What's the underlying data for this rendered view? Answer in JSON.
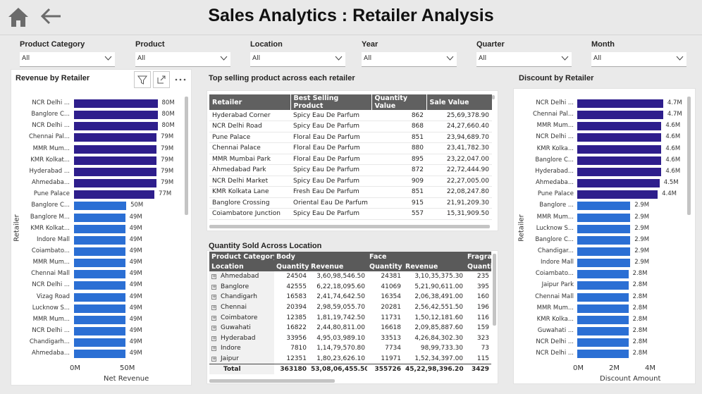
{
  "header": {
    "title": "Sales Analytics : Retailer Analysis"
  },
  "filters": [
    {
      "label": "Product Category",
      "value": "All"
    },
    {
      "label": "Product",
      "value": "All"
    },
    {
      "label": "Location",
      "value": "All"
    },
    {
      "label": "Year",
      "value": "All"
    },
    {
      "label": "Quarter",
      "value": "All"
    },
    {
      "label": "Month",
      "value": "All"
    }
  ],
  "revenue": {
    "title": "Revenue by Retailer",
    "xlabel": "Net Revenue",
    "ylabel": "Retailer",
    "ticks": [
      "0M",
      "50M"
    ]
  },
  "top": {
    "title": "Top selling product across each retailer",
    "headers": [
      "Retailer",
      "Best Selling Product",
      "Quantity Value",
      "Sale Value"
    ],
    "rows": [
      [
        "Hyderabad Corner",
        "Spicy Eau De Parfum",
        "862",
        "25,69,378.90"
      ],
      [
        "NCR Delhi Road",
        "Spicy Eau De Parfum",
        "868",
        "24,27,660.40"
      ],
      [
        "Pune Palace",
        "Floral Eau De Parfum",
        "851",
        "23,94,689.70"
      ],
      [
        "Chennai Palace",
        "Floral Eau De Parfum",
        "880",
        "23,41,782.30"
      ],
      [
        "MMR Mumbai Park",
        "Floral Eau De Parfum",
        "895",
        "23,22,047.00"
      ],
      [
        "Ahmedabad Park",
        "Spicy Eau De Parfum",
        "872",
        "22,72,444.90"
      ],
      [
        "NCR Delhi Market",
        "Spicy Eau De Parfum",
        "909",
        "22,27,005.00"
      ],
      [
        "KMR Kolkata Lane",
        "Fresh Eau De Parfum",
        "851",
        "22,08,247.80"
      ],
      [
        "Banglore Crossing",
        "Oriental Eau De Parfum",
        "915",
        "21,91,209.30"
      ],
      [
        "Coiambatore Junction",
        "Spicy Eau De Parfum",
        "557",
        "15,31,909.50"
      ]
    ]
  },
  "qty": {
    "title": "Quantity Sold Across Location",
    "cat_header": "Product Category",
    "loc_header": "Location",
    "groups": [
      "Body",
      "Face",
      "Fragra"
    ],
    "sub": [
      "Quantity",
      "Revenue",
      "Quantity",
      "Revenue",
      "Quanti"
    ],
    "rows": [
      [
        "Ahmedabad",
        "24504",
        "3,60,98,546.50",
        "24381",
        "3,10,35,375.30",
        "235"
      ],
      [
        "Banglore",
        "42555",
        "6,22,18,095.60",
        "41069",
        "5,21,90,611.00",
        "395"
      ],
      [
        "Chandigarh",
        "16583",
        "2,41,74,642.50",
        "16354",
        "2,06,38,491.00",
        "160"
      ],
      [
        "Chennai",
        "20394",
        "2,98,59,055.70",
        "20281",
        "2,56,42,551.50",
        "196"
      ],
      [
        "Coimbatore",
        "12385",
        "1,81,19,742.50",
        "11731",
        "1,50,12,181.60",
        "116"
      ],
      [
        "Guwahati",
        "16822",
        "2,44,80,811.00",
        "16618",
        "2,09,85,887.60",
        "159"
      ],
      [
        "Hyderabad",
        "33956",
        "4,95,03,989.10",
        "33513",
        "4,26,84,302.30",
        "323"
      ],
      [
        "Indore",
        "7810",
        "1,14,79,570.80",
        "7734",
        "98,99,733.30",
        "73"
      ],
      [
        "Jaipur",
        "12351",
        "1,80,23,626.10",
        "11971",
        "1,52,34,397.00",
        "115"
      ]
    ],
    "total": [
      "Total",
      "363180",
      "53,08,06,455.50",
      "355726",
      "45,22,98,396.20",
      "3429"
    ]
  },
  "discount": {
    "title": "Discount by Retailer",
    "xlabel": "Discount Amount",
    "ylabel": "Retailer",
    "ticks": [
      "0M",
      "2M",
      "4M"
    ]
  },
  "chart_data": [
    {
      "type": "bar",
      "title": "Revenue by Retailer",
      "xlabel": "Net Revenue",
      "ylabel": "Retailer",
      "xlim": [
        0,
        80
      ],
      "categories": [
        "NCR Delhi ...",
        "Banglore C...",
        "NCR Delhi ...",
        "Chennai Pal...",
        "MMR Mum...",
        "KMR Kolkat...",
        "Hyderabad ...",
        "Ahmedaba...",
        "Pune Palace",
        "Banglore C...",
        "Banglore M...",
        "KMR Kolkat...",
        "Indore Mall",
        "Coiambato...",
        "MMR Mum...",
        "Chennai Mall",
        "NCR Delhi ...",
        "Vizag Road",
        "Lucknow S...",
        "MMR Mum...",
        "NCR Delhi ...",
        "Chandigarh...",
        "Ahmedaba..."
      ],
      "values": [
        80,
        80,
        80,
        79,
        79,
        79,
        79,
        79,
        77,
        50,
        49,
        49,
        49,
        49,
        49,
        49,
        49,
        49,
        49,
        49,
        49,
        49,
        49
      ],
      "labels": [
        "80M",
        "80M",
        "80M",
        "79M",
        "79M",
        "79M",
        "79M",
        "79M",
        "77M",
        "50M",
        "49M",
        "49M",
        "49M",
        "49M",
        "49M",
        "49M",
        "49M",
        "49M",
        "49M",
        "49M",
        "49M",
        "49M",
        "49M"
      ],
      "colors": {
        "high": "#2e1e8c",
        "low": "#2b6fd4"
      }
    },
    {
      "type": "bar",
      "title": "Discount by Retailer",
      "xlabel": "Discount Amount",
      "ylabel": "Retailer",
      "xlim": [
        0,
        4.8
      ],
      "categories": [
        "NCR Delhi ...",
        "Chennai Pal...",
        "MMR Mum...",
        "NCR Delhi ...",
        "KMR Kolka...",
        "Banglore C...",
        "Hyderabad...",
        "Ahmedaba...",
        "Pune Palace",
        "Banglore ...",
        "MMR Mum...",
        "Lucknow S...",
        "Banglore C...",
        "Chandigar...",
        "Indore Mall",
        "Coiambato...",
        "Jaipur Park",
        "Chennai Mall",
        "MMR Mum...",
        "KMR Kolka...",
        "Guwahati ...",
        "NCR Delhi ...",
        "NCR Delhi ..."
      ],
      "values": [
        4.7,
        4.7,
        4.6,
        4.6,
        4.6,
        4.6,
        4.6,
        4.5,
        4.4,
        2.9,
        2.9,
        2.9,
        2.9,
        2.9,
        2.9,
        2.8,
        2.8,
        2.8,
        2.8,
        2.8,
        2.8,
        2.8,
        2.8
      ],
      "labels": [
        "4.7M",
        "4.7M",
        "4.6M",
        "4.6M",
        "4.6M",
        "4.6M",
        "4.6M",
        "4.5M",
        "4.4M",
        "2.9M",
        "2.9M",
        "2.9M",
        "2.9M",
        "2.9M",
        "2.9M",
        "2.8M",
        "2.8M",
        "2.8M",
        "2.8M",
        "2.8M",
        "2.8M",
        "2.8M",
        "2.8M"
      ],
      "colors": {
        "high": "#2e1e8c",
        "low": "#2b6fd4"
      }
    }
  ]
}
